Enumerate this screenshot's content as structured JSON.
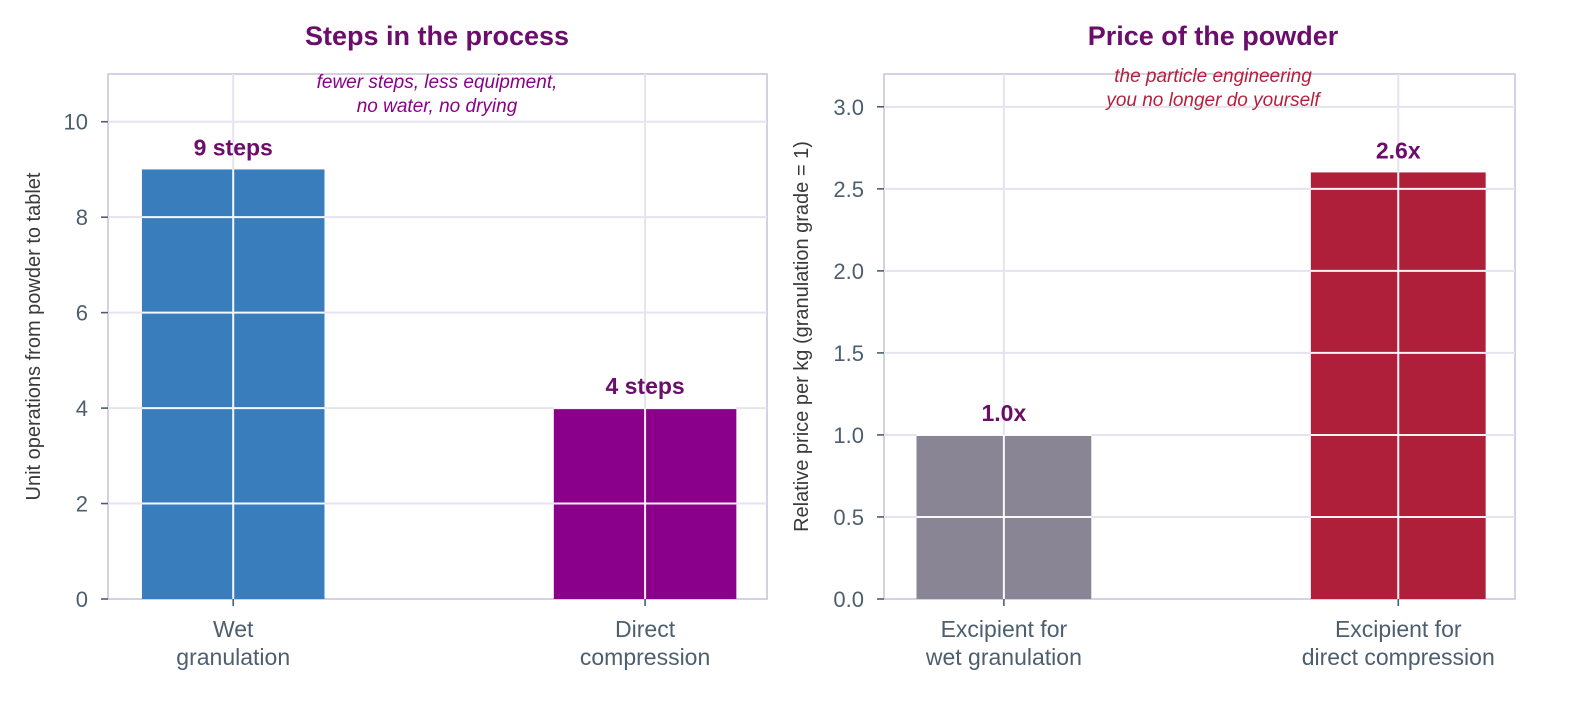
{
  "colors": {
    "title": "#6b0d6b",
    "tick_text": "#4d5f6e",
    "axis_label": "#3a3a3a",
    "grid": "#e6e3f0",
    "frame": "#c9c6db"
  },
  "chart_data": [
    {
      "type": "bar",
      "title": "Steps in the process",
      "annotation": "fewer steps, less equipment,\nno water, no drying",
      "annotation_color": "#8b008b",
      "xlabel": "",
      "ylabel": "Unit operations from powder to tablet",
      "categories": [
        "Wet\ngranulation",
        "Direct\ncompression"
      ],
      "values": [
        9,
        4
      ],
      "value_labels": [
        "9 steps",
        "4 steps"
      ],
      "bar_colors": [
        "#3a7dbd",
        "#8b008b"
      ],
      "ylim": [
        0,
        11
      ],
      "yticks": [
        0,
        2,
        4,
        6,
        8,
        10
      ],
      "ytick_labels": [
        "0",
        "2",
        "4",
        "6",
        "8",
        "10"
      ],
      "grid": true
    },
    {
      "type": "bar",
      "title": "Price of the powder",
      "annotation": "the particle engineering\nyou no longer do yourself",
      "annotation_color": "#b5203e",
      "xlabel": "",
      "ylabel": "Relative price per kg (granulation grade = 1)",
      "categories": [
        "Excipient for\nwet granulation",
        "Excipient for\ndirect compression"
      ],
      "values": [
        1.0,
        2.6
      ],
      "value_labels": [
        "1.0x",
        "2.6x"
      ],
      "bar_colors": [
        "#8a8594",
        "#b01f3a"
      ],
      "ylim": [
        0,
        3.2
      ],
      "yticks": [
        0,
        0.5,
        1.0,
        1.5,
        2.0,
        2.5,
        3.0
      ],
      "ytick_labels": [
        "0.0",
        "0.5",
        "1.0",
        "1.5",
        "2.0",
        "2.5",
        "3.0"
      ],
      "grid": true
    }
  ]
}
